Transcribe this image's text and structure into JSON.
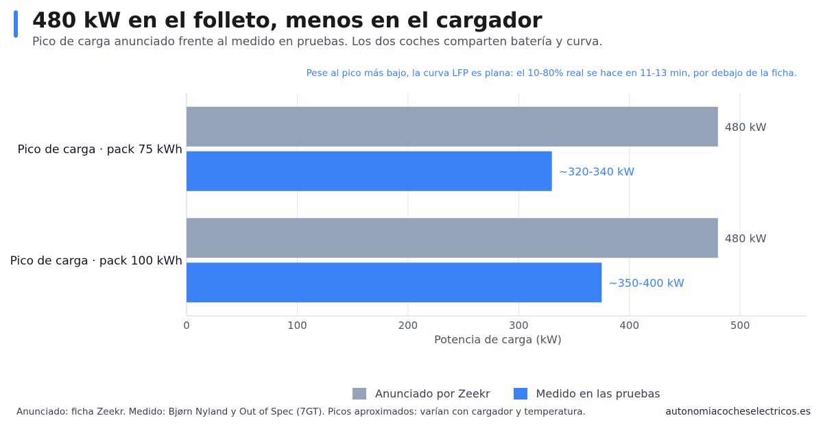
{
  "header": {
    "title": "480 kW en el folleto, menos en el cargador",
    "subtitle": "Pico de carga anunciado frente al medido en pruebas. Los dos coches comparten batería y curva."
  },
  "annotation": "Pese al pico más bajo, la curva LFP es plana: el 10-80% real se hace en 11-13 min, por debajo de la ficha.",
  "chart_data": {
    "type": "bar",
    "orientation": "horizontal",
    "categories": [
      "Pico de carga · pack 75 kWh",
      "Pico de carga · pack 100 kWh"
    ],
    "series": [
      {
        "name": "Anunciado por Zeekr",
        "values": [
          480,
          480
        ],
        "labels": [
          "480 kW",
          "480 kW"
        ],
        "color": "#94a3b8"
      },
      {
        "name": "Medido en las pruebas",
        "values": [
          330,
          375
        ],
        "labels": [
          "~320-340 kW",
          "~350-400 kW"
        ],
        "color": "#3b82f6"
      }
    ],
    "xlabel": "Potencia de carga (kW)",
    "xlim": [
      0,
      560
    ],
    "xticks": [
      0,
      100,
      200,
      300,
      400,
      500
    ],
    "grid": true,
    "legend_position": "bottom"
  },
  "colors": {
    "accent": "#3b82f6",
    "annotation": "#3b82f6",
    "grid": "#e5e7eb"
  },
  "footer": {
    "source": "Anunciado: ficha Zeekr. Medido: Bjørn Nyland y Out of Spec (7GT). Picos aproximados: varían con cargador y temperatura.",
    "site": "autonomiacocheselectricos.es"
  }
}
